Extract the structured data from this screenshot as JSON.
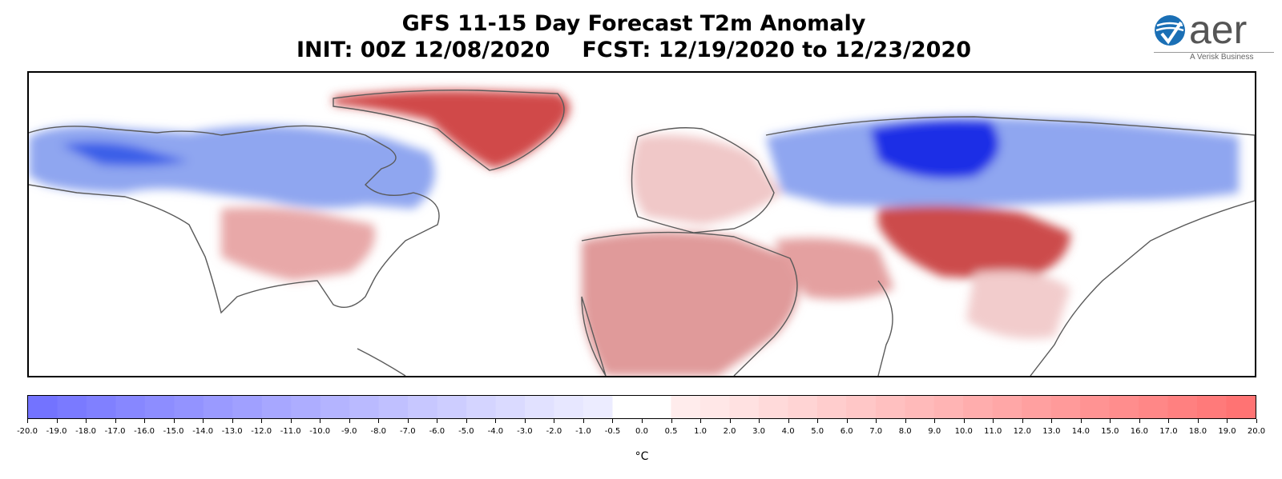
{
  "header": {
    "title": "GFS 11-15 Day Forecast T2m Anomaly",
    "init": "INIT: 00Z 12/08/2020",
    "fcst": "FCST: 12/19/2020 to 12/23/2020"
  },
  "logo": {
    "wordmark": "aer",
    "tagline": "A Verisk Business",
    "accent_color": "#1a6fb5",
    "text_color": "#555555"
  },
  "map": {
    "region": "Northern Hemisphere (North America to East Asia)",
    "anomaly_patterns": [
      {
        "area": "Greenland",
        "sign": "warm",
        "intensity": "strong"
      },
      {
        "area": "Canada / Alaska",
        "sign": "cold",
        "intensity": "moderate"
      },
      {
        "area": "Central & Eastern United States",
        "sign": "warm",
        "intensity": "moderate"
      },
      {
        "area": "Northern Russia / Siberia",
        "sign": "cold",
        "intensity": "strong"
      },
      {
        "area": "Sahara / North Africa",
        "sign": "warm",
        "intensity": "moderate"
      },
      {
        "area": "Central Asia / Tibet",
        "sign": "warm",
        "intensity": "strong"
      },
      {
        "area": "Europe",
        "sign": "warm",
        "intensity": "weak"
      }
    ]
  },
  "colorbar": {
    "unit": "°C",
    "min": -20.0,
    "max": 20.0,
    "cold_color": "#7070ff",
    "warm_color": "#ff7070",
    "neutral_color": "#ffffff",
    "tick_labels": [
      "-20.0",
      "-19.0",
      "-18.0",
      "-17.0",
      "-16.0",
      "-15.0",
      "-14.0",
      "-13.0",
      "-12.0",
      "-11.0",
      "-10.0",
      "-9.0",
      "-8.0",
      "-7.0",
      "-6.0",
      "-5.0",
      "-4.0",
      "-3.0",
      "-2.0",
      "-1.0",
      "-0.5",
      "0.0",
      "0.5",
      "1.0",
      "2.0",
      "3.0",
      "4.0",
      "5.0",
      "6.0",
      "7.0",
      "8.0",
      "9.0",
      "10.0",
      "11.0",
      "12.0",
      "13.0",
      "14.0",
      "15.0",
      "16.0",
      "17.0",
      "18.0",
      "19.0",
      "20.0"
    ]
  }
}
